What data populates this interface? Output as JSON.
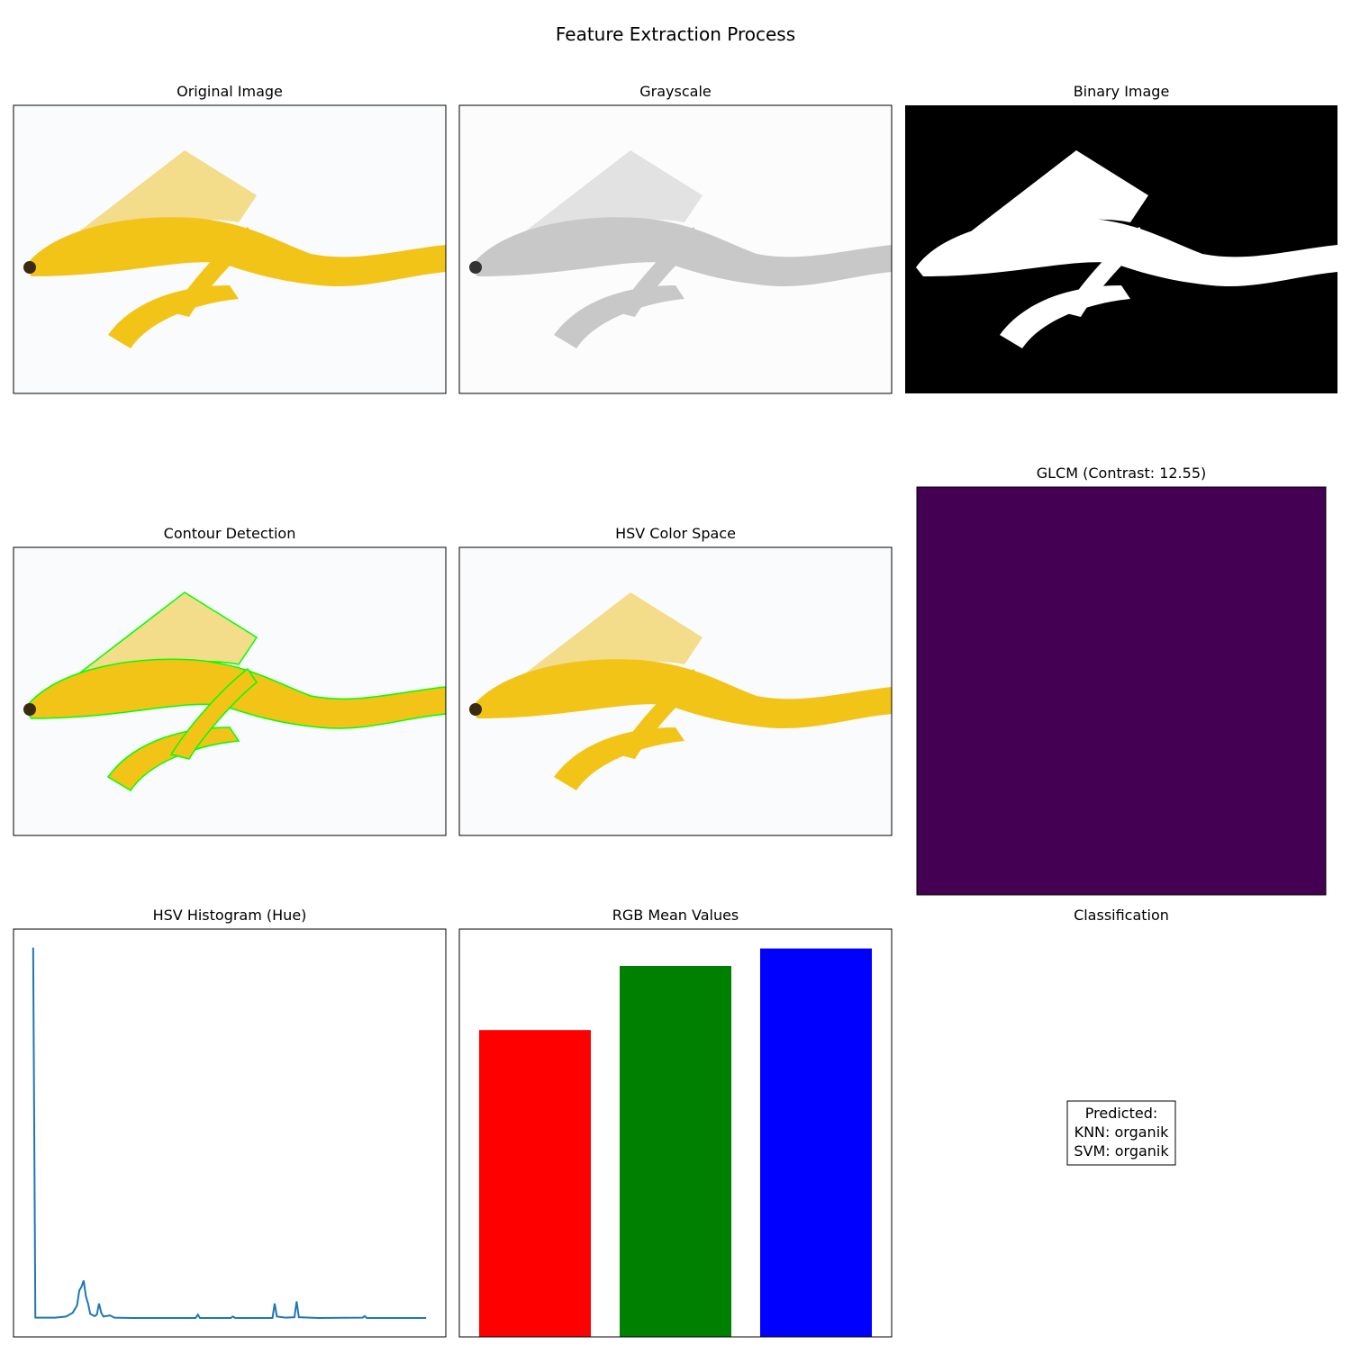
{
  "title": "Feature Extraction Process",
  "panels": {
    "original": {
      "title": "Original Image"
    },
    "grayscale": {
      "title": "Grayscale"
    },
    "binary": {
      "title": "Binary Image"
    },
    "contour": {
      "title": "Contour Detection"
    },
    "hsv": {
      "title": "HSV Color Space"
    },
    "glcm": {
      "title": "GLCM (Contrast: 12.55)"
    },
    "classification": {
      "title": "Classification",
      "lines": [
        "Predicted:",
        "KNN: organik",
        "SVM: organik"
      ]
    }
  },
  "chart_data": [
    {
      "type": "line",
      "title": "HSV Histogram (Hue)",
      "color": "#1f77b4",
      "x": [
        0,
        1,
        10,
        15,
        18,
        20,
        21,
        22,
        23,
        24,
        25,
        26,
        28,
        29,
        30,
        31,
        32,
        35,
        37,
        45,
        74,
        75,
        76,
        90,
        91,
        92,
        109,
        110,
        111,
        115,
        119,
        120,
        121,
        130,
        150,
        151,
        152,
        179
      ],
      "values": [
        1000,
        2,
        2,
        5,
        15,
        35,
        75,
        85,
        102,
        60,
        40,
        12,
        6,
        10,
        40,
        15,
        5,
        8,
        2,
        1,
        1,
        10,
        1,
        1,
        5,
        1,
        1,
        40,
        5,
        2,
        3,
        46,
        3,
        1,
        2,
        6,
        1,
        1
      ],
      "xlim": [
        -8.95,
        187.95
      ],
      "ylim": [
        -50,
        1050
      ]
    },
    {
      "type": "bar",
      "title": "RGB Mean Values",
      "categories": [
        null,
        null,
        null
      ],
      "values": [
        158,
        191,
        200
      ],
      "colors": [
        "#ff0000",
        "#008000",
        "#0000ff"
      ],
      "ylim": [
        0,
        210
      ]
    }
  ]
}
